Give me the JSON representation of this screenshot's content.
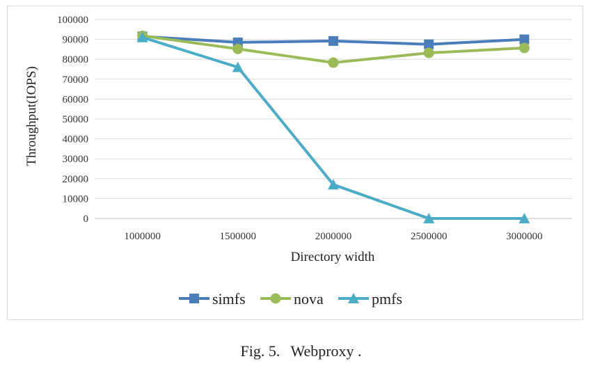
{
  "caption": {
    "label": "Fig. 5.",
    "title": "Webproxy ."
  },
  "chart_data": {
    "type": "line",
    "title": "",
    "xlabel": "Directory width",
    "ylabel": "Throughput(IOPS)",
    "categories": [
      "1000000",
      "1500000",
      "2000000",
      "2500000",
      "3000000"
    ],
    "ylim": [
      0,
      100000
    ],
    "yticks": [
      0,
      10000,
      20000,
      30000,
      40000,
      50000,
      60000,
      70000,
      80000,
      90000,
      100000
    ],
    "grid": true,
    "legend_position": "bottom",
    "series": [
      {
        "name": "simfs",
        "color": "#4a7ebb",
        "marker": "square",
        "values": [
          91500,
          88500,
          89200,
          87500,
          90000
        ]
      },
      {
        "name": "nova",
        "color": "#9bbb59",
        "marker": "circle",
        "values": [
          91800,
          85200,
          78300,
          83200,
          85700
        ]
      },
      {
        "name": "pmfs",
        "color": "#4bacc6",
        "marker": "triangle",
        "values": [
          91000,
          76000,
          17000,
          0,
          0
        ]
      }
    ]
  }
}
